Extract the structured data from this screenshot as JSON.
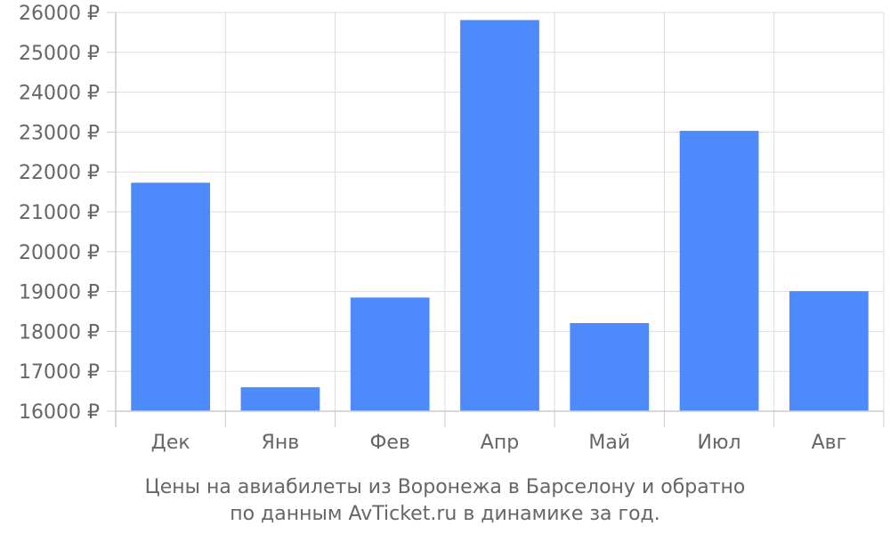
{
  "chart_data": {
    "type": "bar",
    "categories": [
      "Дек",
      "Янв",
      "Фев",
      "Апр",
      "Май",
      "Июл",
      "Авг"
    ],
    "values": [
      21730,
      16600,
      18850,
      25810,
      18210,
      23030,
      19010
    ],
    "ylim": [
      16000,
      26000
    ],
    "yticks": [
      16000,
      17000,
      18000,
      19000,
      20000,
      21000,
      22000,
      23000,
      24000,
      25000,
      26000
    ],
    "ytick_suffix": " ₽",
    "grid": true,
    "bar_color": "#4d8afb"
  },
  "caption": {
    "line1": "Цены на авиабилеты из Воронежа в Барселону и обратно",
    "line2": "по данным AvTicket.ru в динамике за год."
  }
}
